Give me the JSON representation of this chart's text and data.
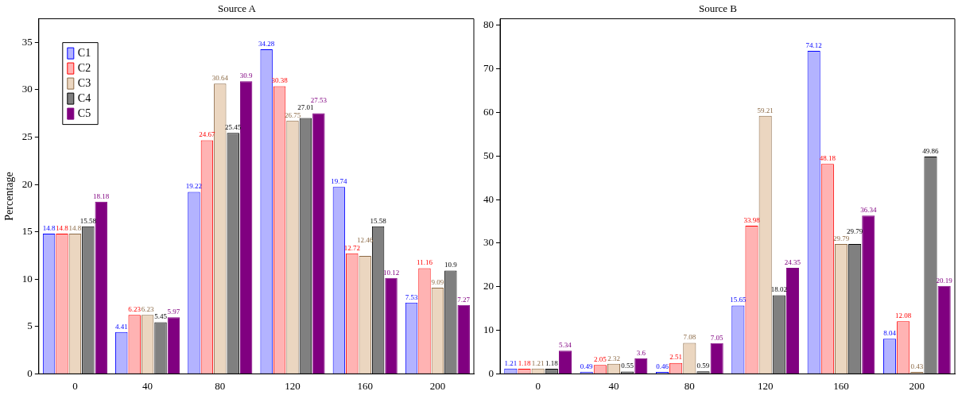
{
  "chart_data": [
    {
      "type": "bar",
      "title": "Source A",
      "ylabel": "Percentage",
      "categories": [
        "0",
        "40",
        "80",
        "120",
        "160",
        "200"
      ],
      "ylim": [
        0,
        37.5
      ],
      "yticks": [
        0,
        5,
        10,
        15,
        20,
        25,
        30,
        35
      ],
      "grid": false,
      "legend": "top left",
      "data_labels": true,
      "series": [
        {
          "name": "C1",
          "color": "#b3b3ff",
          "values": [
            14.8,
            4.41,
            19.22,
            34.28,
            19.74,
            7.53
          ]
        },
        {
          "name": "C2",
          "color": "#ffb3b3",
          "values": [
            14.8,
            6.23,
            24.67,
            30.38,
            12.72,
            11.16
          ]
        },
        {
          "name": "C3",
          "color": "#ebd6c0",
          "values": [
            14.8,
            6.23,
            30.64,
            26.75,
            12.46,
            9.09
          ]
        },
        {
          "name": "C4",
          "color": "#808080",
          "values": [
            15.58,
            5.45,
            25.45,
            27.01,
            15.58,
            10.9
          ]
        },
        {
          "name": "C5",
          "color": "#800080",
          "values": [
            18.18,
            5.97,
            30.9,
            27.53,
            10.12,
            7.27
          ]
        }
      ]
    },
    {
      "type": "bar",
      "title": "Source B",
      "categories": [
        "0",
        "40",
        "80",
        "120",
        "160",
        "200"
      ],
      "ylim": [
        0,
        81.5
      ],
      "yticks": [
        0,
        10,
        20,
        30,
        40,
        50,
        60,
        70,
        80
      ],
      "grid": false,
      "legend": false,
      "data_labels": true,
      "series": [
        {
          "color": "#b3b3ff",
          "values": [
            1.21,
            0.49,
            0.46,
            15.65,
            74.12,
            8.04
          ]
        },
        {
          "color": "#ffb3b3",
          "values": [
            1.18,
            2.05,
            2.51,
            33.98,
            48.18,
            12.08
          ]
        },
        {
          "color": "#ebd6c0",
          "values": [
            1.21,
            2.32,
            7.08,
            59.21,
            29.79,
            0.43
          ]
        },
        {
          "color": "#808080",
          "values": [
            1.18,
            0.55,
            0.59,
            18.02,
            29.79,
            49.86
          ]
        },
        {
          "color": "#800080",
          "values": [
            5.34,
            3.6,
            7.05,
            24.35,
            36.34,
            20.19
          ]
        }
      ]
    }
  ]
}
